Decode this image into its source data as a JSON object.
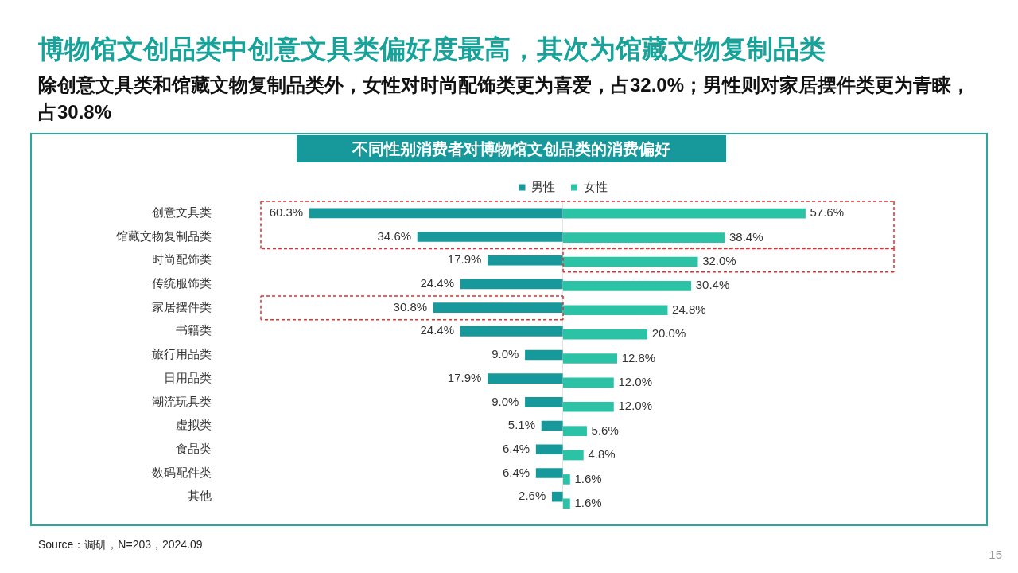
{
  "chart_data": [
    {
      "type": "bar",
      "orientation": "horizontal",
      "title": "不同性别消费者对博物馆文创品类的消费偏好",
      "subtitle": "博物馆文创品类中创意文具类偏好度最高，其次为馆藏文物复制品类",
      "annotations": [
        "除创意文具类和馆藏文物复制品类外，女性对时尚配饰类更为喜爱，占32.0%；男性则对家居摆件类更为青睐，占30.8%",
        "Source：调研，N=203，2024.09",
        "15"
      ],
      "categories": [
        "创意文具类",
        "馆藏文物复制品类",
        "时尚配饰类",
        "传统服饰类",
        "家居摆件类",
        "书籍类",
        "旅行用品类",
        "日用品类",
        "潮流玩具类",
        "虚拟类",
        "食品类",
        "数码配件类",
        "其他"
      ],
      "series": [
        {
          "name": "男性",
          "color": "#17999c",
          "values": [
            60.3,
            34.6,
            17.9,
            24.4,
            30.8,
            24.4,
            9.0,
            17.9,
            9.0,
            5.1,
            6.4,
            6.4,
            2.6
          ],
          "value_labels": [
            "60.3%",
            "34.6%",
            "17.9%",
            "24.4%",
            "30.8%",
            "24.4%",
            "9.0%",
            "17.9%",
            "9.0%",
            "5.1%",
            "6.4%",
            "6.4%",
            "2.6%"
          ]
        }
      ],
      "tick_labels": "y",
      "grid": false,
      "legend": "top right",
      "ref_lines": [
        {
          "axis": "x",
          "value": 0,
          "color": "#c8c8c8"
        }
      ]
    },
    {
      "type": "bar",
      "orientation": "horizontal",
      "categories": [
        null,
        null,
        null,
        null,
        null,
        null,
        null,
        null,
        null,
        null,
        null,
        null,
        null
      ],
      "series": [
        {
          "name": "女性",
          "color": "#2cc2a6",
          "values": [
            57.6,
            38.4,
            32.0,
            30.4,
            24.8,
            20.0,
            12.8,
            12.0,
            12.0,
            5.6,
            4.8,
            1.6,
            1.6
          ],
          "value_labels": [
            "57.6%",
            "38.4%",
            "32.0%",
            "30.4%",
            "24.8%",
            "20.0%",
            "12.8%",
            "12.0%",
            "12.0%",
            "5.6%",
            "4.8%",
            "1.6%",
            "1.6%"
          ]
        }
      ],
      "tick_labels": false,
      "grid": false,
      "legend": "top left"
    }
  ]
}
